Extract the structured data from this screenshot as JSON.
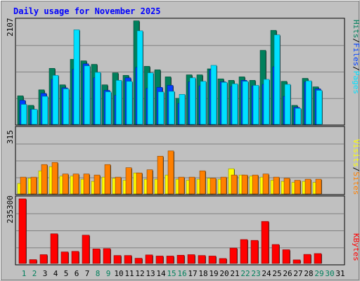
{
  "title": "Daily usage for November 2025",
  "right_labels": {
    "pages": "Pages",
    "files": "Files",
    "hits": "Hits",
    "sites": "Sites",
    "visits": "Visits",
    "kbytes": "KBytes",
    "sep": "/"
  },
  "colors": {
    "title": "#0000ff",
    "hits": "#00805c",
    "files": "#0040ff",
    "pages": "#00e0ff",
    "sites": "#ff8000",
    "visits": "#ffff00",
    "kbytes": "#ff0000",
    "plot_bg": "#c0c0c0",
    "weekend_day": "#00805c",
    "weekday": "#000000"
  },
  "chart_data": [
    {
      "type": "bar",
      "title": "Daily usage for November 2025",
      "ylabel": "2107",
      "ylim": [
        0,
        2107
      ],
      "categories": [
        "1",
        "2",
        "3",
        "4",
        "5",
        "6",
        "7",
        "8",
        "9",
        "10",
        "11",
        "12",
        "13",
        "14",
        "15",
        "16",
        "17",
        "18",
        "19",
        "20",
        "21",
        "22",
        "23",
        "24",
        "25",
        "26",
        "27",
        "28",
        "29",
        "30",
        "31"
      ],
      "weekend": [
        "1",
        "2",
        "8",
        "9",
        "15",
        "16",
        "22",
        "23",
        "29",
        "30"
      ],
      "series": [
        {
          "name": "Hits",
          "values": [
            570,
            380,
            690,
            1120,
            790,
            1300,
            1270,
            1200,
            790,
            1030,
            980,
            2070,
            1160,
            1090,
            950,
            520,
            990,
            990,
            1110,
            910,
            880,
            950,
            880,
            1480,
            1880,
            860,
            380,
            920,
            750,
            0,
            0
          ]
        },
        {
          "name": "Files",
          "values": [
            480,
            300,
            620,
            900,
            730,
            1100,
            1210,
            930,
            680,
            580,
            930,
            1140,
            720,
            740,
            780,
            420,
            850,
            770,
            1090,
            850,
            760,
            880,
            770,
            800,
            1150,
            560,
            340,
            850,
            710,
            0,
            0
          ]
        },
        {
          "name": "Pages",
          "values": [
            400,
            300,
            560,
            980,
            710,
            1890,
            1170,
            1040,
            650,
            880,
            860,
            1870,
            1030,
            650,
            660,
            600,
            930,
            860,
            1180,
            840,
            810,
            860,
            780,
            900,
            1790,
            800,
            320,
            870,
            680,
            0,
            0
          ]
        }
      ]
    },
    {
      "type": "bar",
      "ylabel": "315",
      "ylim": [
        0,
        315
      ],
      "categories": [
        "1",
        "2",
        "3",
        "4",
        "5",
        "6",
        "7",
        "8",
        "9",
        "10",
        "11",
        "12",
        "13",
        "14",
        "15",
        "16",
        "17",
        "18",
        "19",
        "20",
        "21",
        "22",
        "23",
        "24",
        "25",
        "26",
        "27",
        "28",
        "29",
        "30",
        "31"
      ],
      "series": [
        {
          "name": "Visits",
          "values": [
            50,
            75,
            110,
            130,
            85,
            85,
            70,
            60,
            80,
            75,
            65,
            100,
            70,
            70,
            90,
            70,
            65,
            70,
            75,
            70,
            120,
            90,
            85,
            80,
            65,
            60,
            55,
            60,
            55,
            0,
            0
          ]
        },
        {
          "name": "Sites",
          "values": [
            80,
            80,
            140,
            150,
            95,
            95,
            95,
            90,
            140,
            80,
            125,
            100,
            115,
            180,
            205,
            80,
            80,
            110,
            75,
            80,
            90,
            90,
            90,
            95,
            80,
            75,
            65,
            70,
            70,
            0,
            0
          ]
        }
      ]
    },
    {
      "type": "bar",
      "ylabel": "235300",
      "ylim": [
        0,
        235300
      ],
      "categories": [
        "1",
        "2",
        "3",
        "4",
        "5",
        "6",
        "7",
        "8",
        "9",
        "10",
        "11",
        "12",
        "13",
        "14",
        "15",
        "16",
        "17",
        "18",
        "19",
        "20",
        "21",
        "22",
        "23",
        "24",
        "25",
        "26",
        "27",
        "28",
        "29",
        "30",
        "31"
      ],
      "series": [
        {
          "name": "KBytes",
          "values": [
            235300,
            14000,
            32000,
            108000,
            42000,
            44000,
            103000,
            53000,
            54000,
            29000,
            29000,
            19000,
            31000,
            27000,
            27000,
            30000,
            32000,
            29000,
            27000,
            18000,
            56000,
            87000,
            84000,
            153000,
            69000,
            50000,
            13000,
            33000,
            36000,
            0,
            0
          ]
        }
      ]
    }
  ]
}
